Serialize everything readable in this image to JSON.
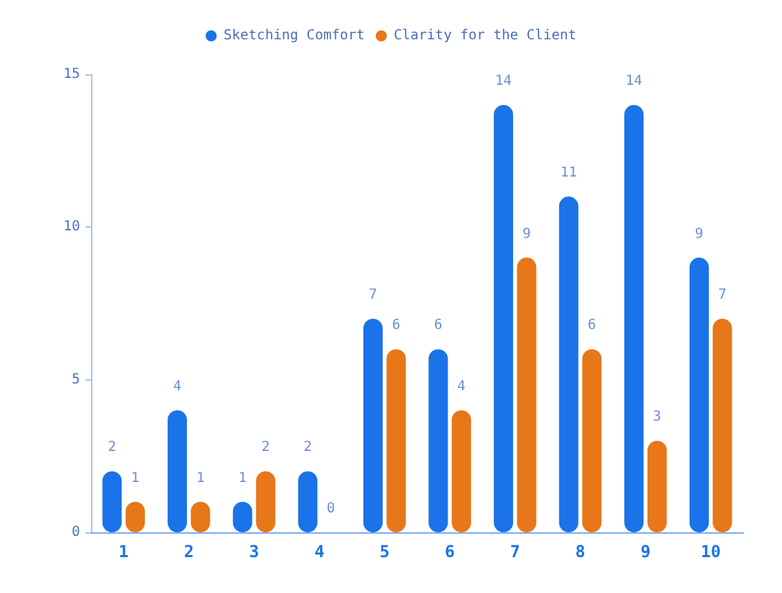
{
  "chart_data": {
    "type": "bar",
    "categories": [
      "1",
      "2",
      "3",
      "4",
      "5",
      "6",
      "7",
      "8",
      "9",
      "10"
    ],
    "series": [
      {
        "name": "Sketching Comfort",
        "color": "#1a73e8",
        "values": [
          2,
          4,
          1,
          2,
          7,
          6,
          14,
          11,
          14,
          9
        ]
      },
      {
        "name": "Clarity for the Client",
        "color": "#e8771a",
        "values": [
          1,
          1,
          2,
          0,
          6,
          4,
          9,
          6,
          3,
          7
        ]
      }
    ],
    "ylim": [
      0,
      15
    ],
    "yticks": [
      0,
      5,
      10,
      15
    ],
    "grid": false,
    "legend": "top",
    "data_labels": true
  }
}
